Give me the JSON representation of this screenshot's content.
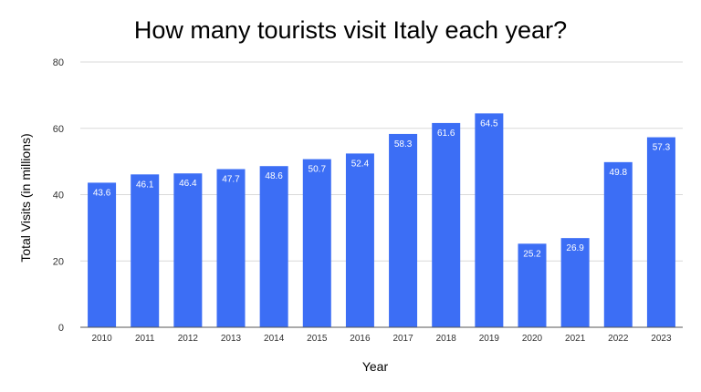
{
  "chart_data": {
    "type": "bar",
    "title": "How many tourists visit Italy each year?",
    "xlabel": "Year",
    "ylabel": "Total Visits (in millions)",
    "categories": [
      "2010",
      "2011",
      "2012",
      "2013",
      "2014",
      "2015",
      "2016",
      "2017",
      "2018",
      "2019",
      "2020",
      "2021",
      "2022",
      "2023"
    ],
    "values": [
      43.6,
      46.1,
      46.4,
      47.7,
      48.6,
      50.7,
      52.4,
      58.3,
      61.6,
      64.5,
      25.2,
      26.9,
      49.8,
      57.3
    ],
    "value_labels": [
      "43.6",
      "46.1",
      "46.4",
      "47.7",
      "48.6",
      "50.7",
      "52.4",
      "58.3",
      "61.6",
      "64.5",
      "25.2",
      "26.9",
      "49.8",
      "57.3"
    ],
    "ylim": [
      0,
      80
    ],
    "yticks": [
      0,
      20,
      40,
      60,
      80
    ],
    "ytick_labels": [
      "0",
      "20",
      "40",
      "60",
      "80"
    ],
    "grid": true,
    "legend": "none",
    "bar_color": "#3c6ef5",
    "label_color": "#ffffff",
    "grid_color": "#d9d9d9",
    "axis_color": "#555555"
  }
}
